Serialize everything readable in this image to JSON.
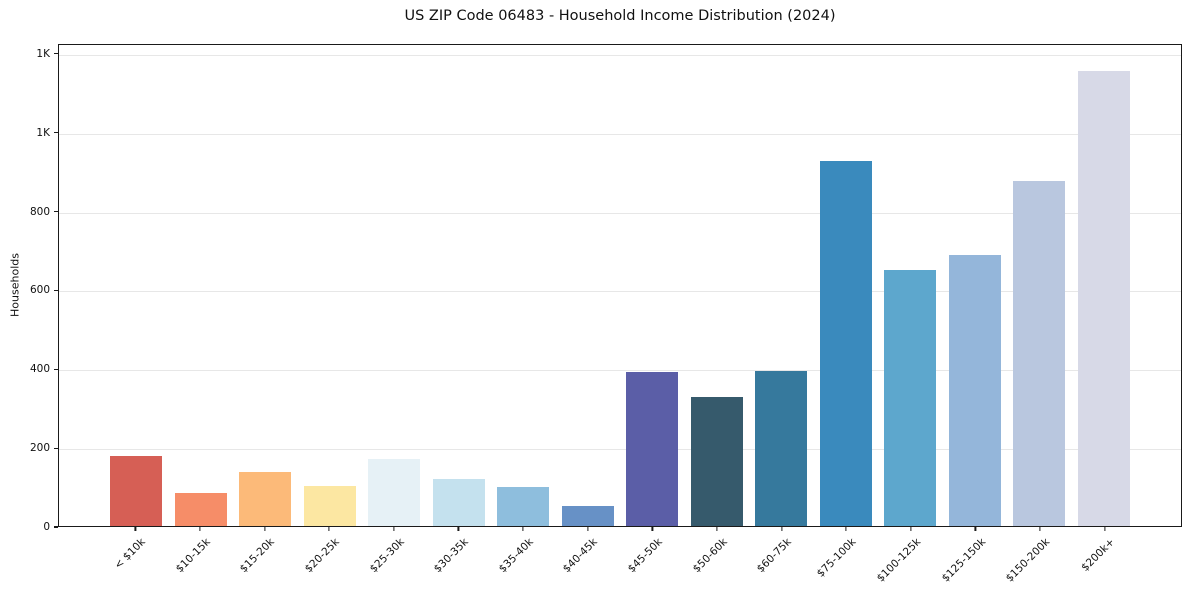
{
  "figure": {
    "title": "US ZIP Code 06483 - Household Income Distribution (2024)"
  },
  "chart_data": {
    "type": "bar",
    "title": "US ZIP Code 06483 - Household Income Distribution (2024)",
    "xlabel": "",
    "ylabel": "Households",
    "ylim": [
      0,
      1225
    ],
    "grid": "horizontal-light-gray",
    "legend": "none",
    "background_color": "#ffffff",
    "spine_color": "#1a1a1a",
    "gridline_color": "#e7e7e7",
    "categories": [
      "< $10k",
      "$10-15k",
      "$15-20k",
      "$20-25k",
      "$25-30k",
      "$30-35k",
      "$35-40k",
      "$40-45k",
      "$45-50k",
      "$50-60k",
      "$60-75k",
      "$75-100k",
      "$100-125k",
      "$125-150k",
      "$150-200k",
      "$200k+"
    ],
    "values": [
      178,
      85,
      137,
      103,
      170,
      119,
      100,
      51,
      393,
      329,
      395,
      930,
      651,
      689,
      878,
      1160
    ],
    "bar_colors": [
      "#d65f55",
      "#f68d68",
      "#fcba79",
      "#fce7a2",
      "#e6f1f6",
      "#c4e1ee",
      "#8ebedd",
      "#6791c6",
      "#5b5ea7",
      "#365a6c",
      "#36799d",
      "#3a8abd",
      "#5da7cd",
      "#94b6da",
      "#b9c7df",
      "#d7d9e7"
    ],
    "y_ticks": [
      {
        "value": 0,
        "label": "0"
      },
      {
        "value": 200,
        "label": "200"
      },
      {
        "value": 400,
        "label": "400"
      },
      {
        "value": 600,
        "label": "600"
      },
      {
        "value": 800,
        "label": "800"
      },
      {
        "value": 1000,
        "label": "1K"
      },
      {
        "value": 1200,
        "label": "1K"
      }
    ]
  }
}
